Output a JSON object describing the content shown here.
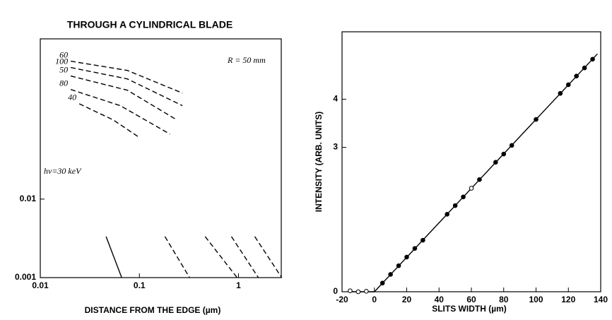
{
  "chart_data": [
    {
      "type": "line",
      "title": "THROUGH A CYLINDRICAL BLADE",
      "xlabel": "DISTANCE FROM THE EDGE (µm)",
      "log_x": true,
      "log_y": true,
      "xlim": [
        0.01,
        2.7
      ],
      "ylim": [
        0.001,
        1.1
      ],
      "xticks": [
        0.01,
        0.1,
        1
      ],
      "yticks": [
        0.001,
        0.01
      ],
      "annotations": [
        "R = 50 mm",
        "hν=30 keV"
      ],
      "series": [
        {
          "name": "60",
          "color": "#000",
          "style": "dashed",
          "x": [
            0.0203,
            0.0756,
            0.272
          ],
          "values": [
            0.571,
            0.436,
            0.224
          ]
        },
        {
          "name": "100",
          "color": "#000",
          "style": "dashed",
          "x": [
            0.0203,
            0.0756,
            0.272
          ],
          "values": [
            0.474,
            0.34,
            0.155
          ]
        },
        {
          "name": "50",
          "color": "#000",
          "style": "dashed",
          "x": [
            0.0203,
            0.0756,
            0.239
          ],
          "values": [
            0.37,
            0.244,
            0.102
          ]
        },
        {
          "name": "80",
          "color": "#000",
          "style": "dashed",
          "x": [
            0.0203,
            0.0642,
            0.203
          ],
          "values": [
            0.249,
            0.155,
            0.0674
          ]
        },
        {
          "name": "40",
          "color": "#000",
          "style": "dashed",
          "x": [
            0.0247,
            0.0545,
            0.1
          ],
          "values": [
            0.164,
            0.102,
            0.0608
          ]
        },
        {
          "color": "#000",
          "style": "solid",
          "x": [
            0.0461,
            0.0663
          ],
          "values": [
            0.00333,
            0.001
          ]
        },
        {
          "color": "#000",
          "style": "dashed",
          "x": [
            0.181,
            0.321
          ],
          "values": [
            0.00333,
            0.001
          ]
        },
        {
          "color": "#000",
          "style": "dashed",
          "x": [
            0.461,
            0.968
          ],
          "values": [
            0.00333,
            0.001
          ]
        },
        {
          "color": "#000",
          "style": "dashed",
          "x": [
            0.849,
            1.585
          ],
          "values": [
            0.00333,
            0.001
          ]
        },
        {
          "color": "#000",
          "style": "dashed",
          "x": [
            1.459,
            2.73
          ],
          "values": [
            0.00333,
            0.001
          ]
        }
      ]
    },
    {
      "type": "scatter",
      "xlabel": "SLITS WIDTH (µm)",
      "ylabel": "INTENSITY (ARB. UNITS)",
      "xlim": [
        -20,
        140
      ],
      "ylim": [
        0,
        5.4
      ],
      "xticks": [
        -20,
        0,
        20,
        40,
        60,
        80,
        100,
        120,
        140
      ],
      "yticks": [
        0,
        3,
        4
      ],
      "series": [
        {
          "color": "#000",
          "style": "solid",
          "x": [
            -15,
            0,
            138
          ],
          "values": [
            0,
            0,
            4.94
          ]
        },
        {
          "color": "#000",
          "style": "open",
          "x": [
            -15,
            -10,
            -5,
            60
          ],
          "values": [
            0.02,
            0,
            0.01,
            2.15
          ]
        },
        {
          "color": "#000",
          "style": "markers",
          "x": [
            5,
            10,
            15,
            20,
            25,
            30,
            45,
            50,
            55,
            65,
            75,
            80,
            85,
            100,
            115,
            120,
            125,
            130,
            135
          ],
          "values": [
            0.18,
            0.36,
            0.54,
            0.72,
            0.9,
            1.07,
            1.61,
            1.79,
            1.97,
            2.33,
            2.69,
            2.86,
            3.04,
            3.58,
            4.12,
            4.3,
            4.48,
            4.65,
            4.83
          ]
        }
      ]
    }
  ]
}
